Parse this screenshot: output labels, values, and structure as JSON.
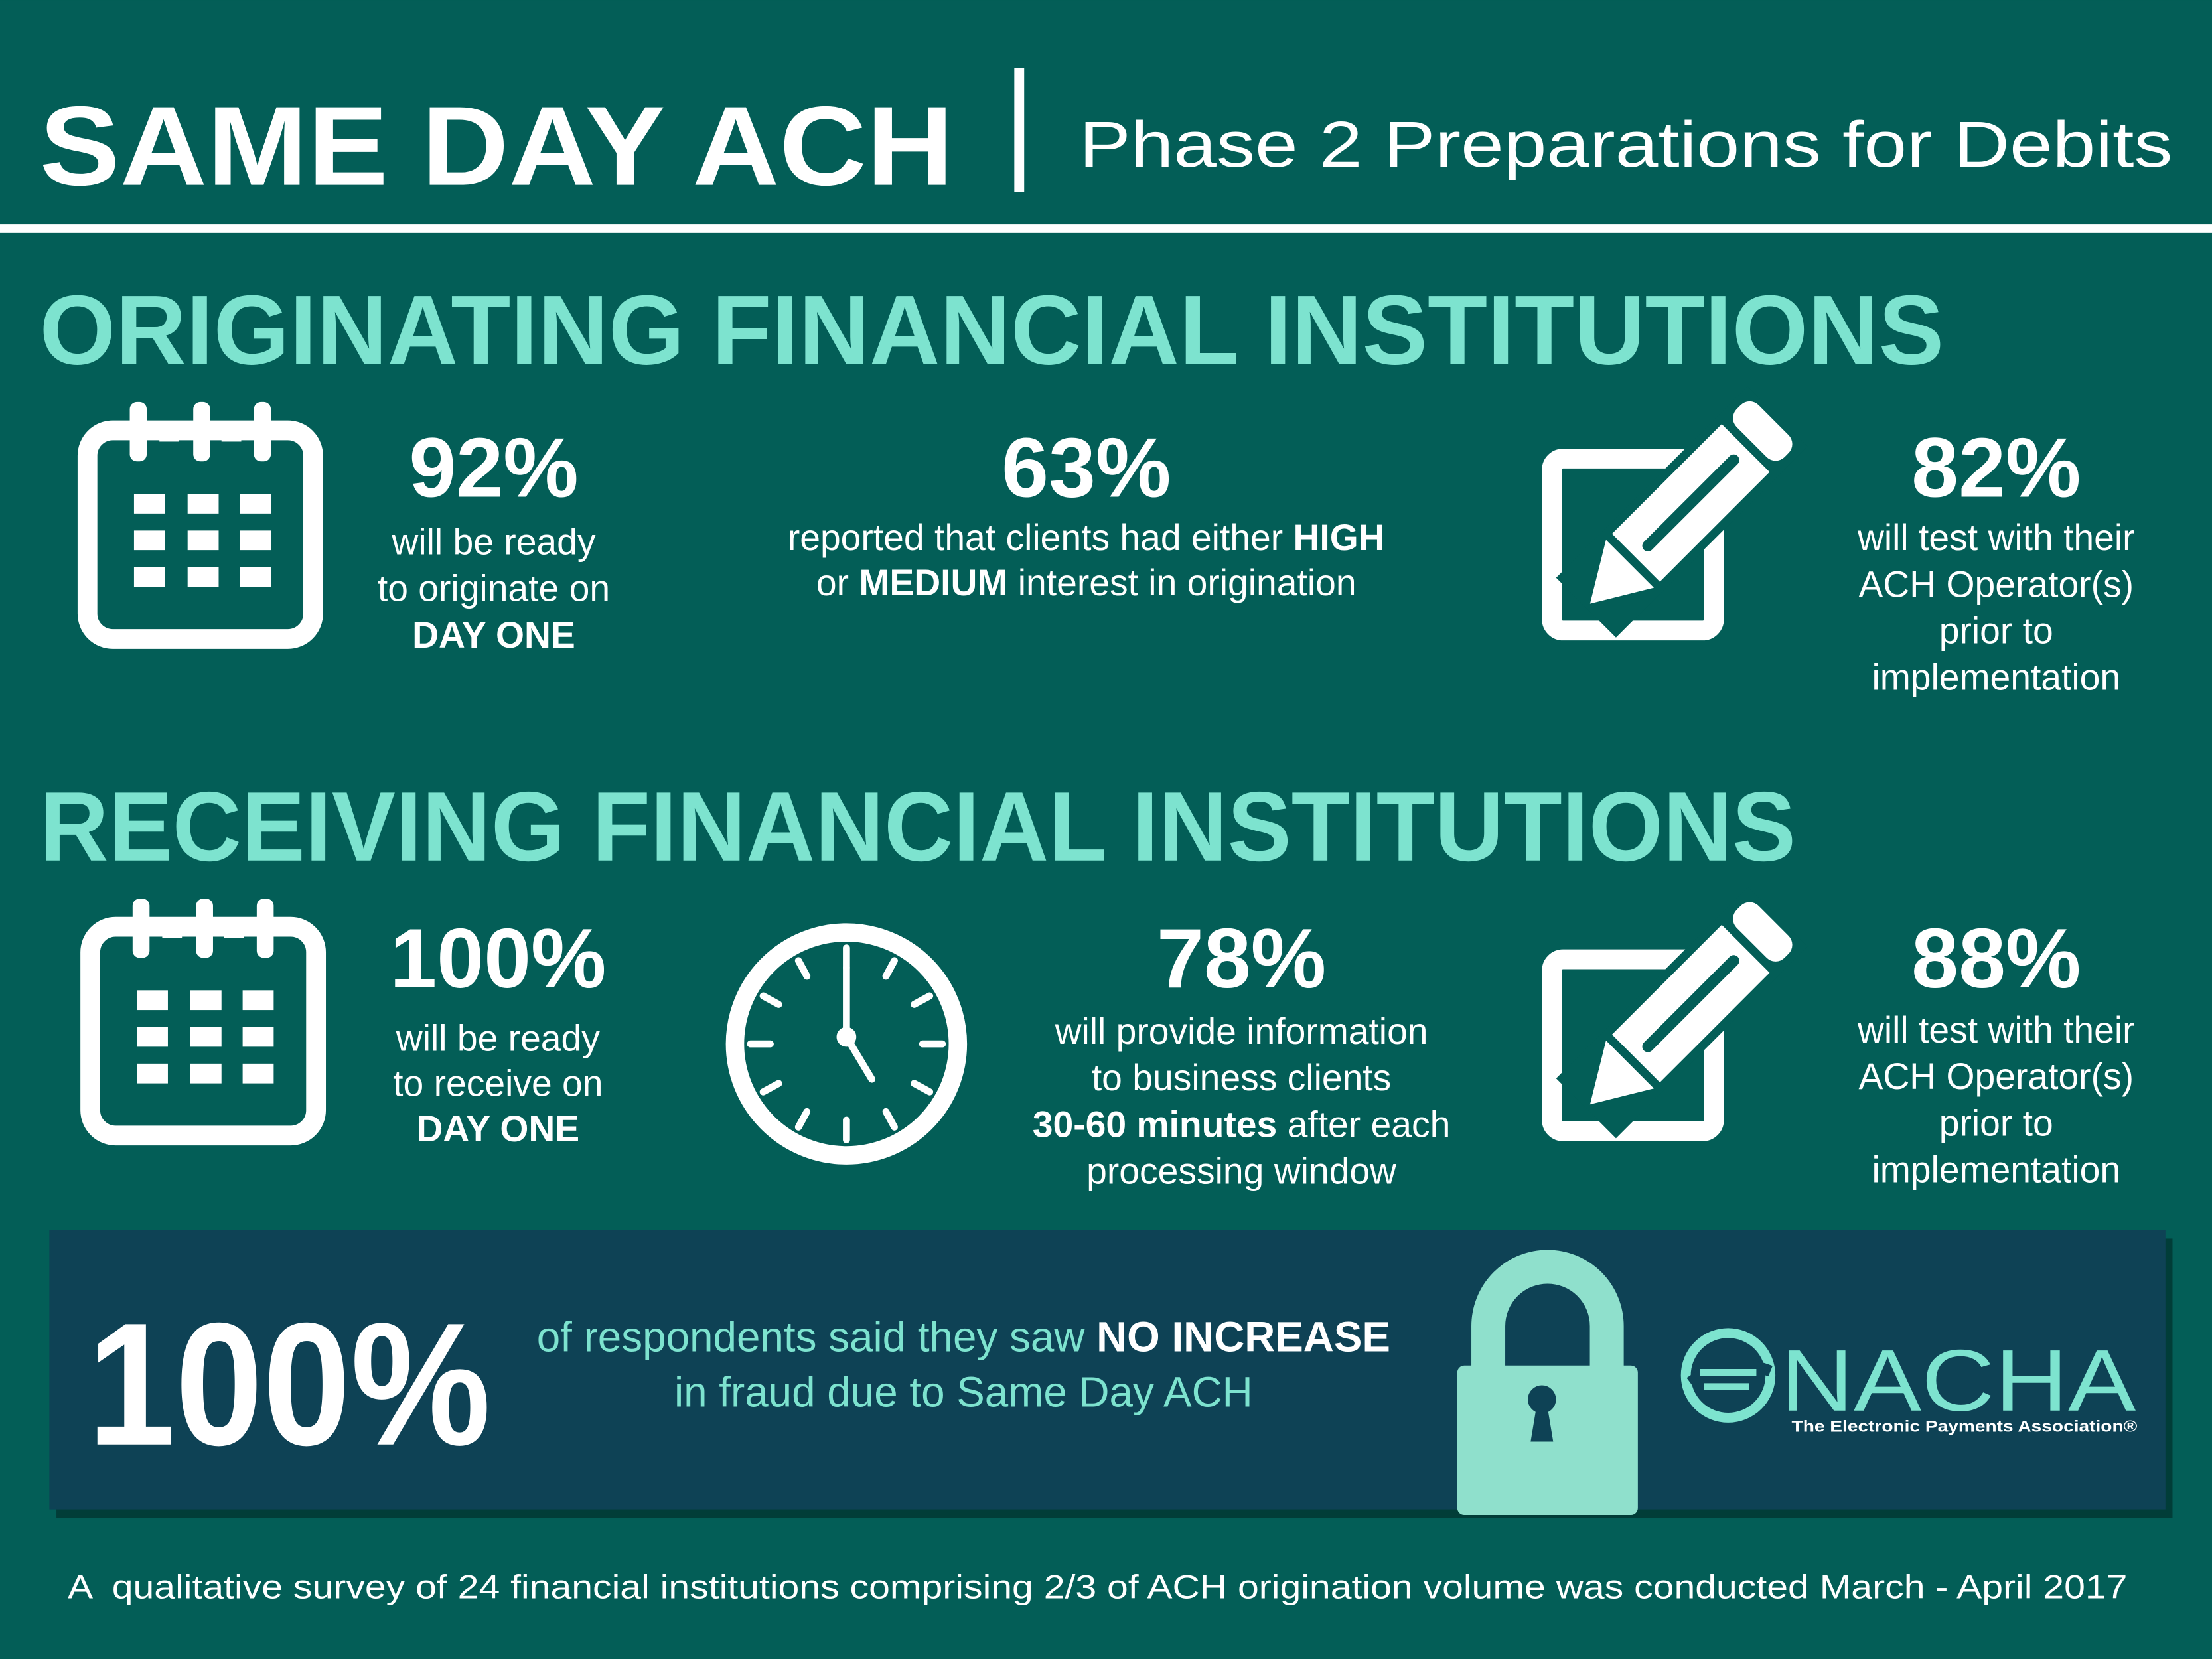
{
  "header": {
    "title": "SAME DAY ACH",
    "subtitle": "Phase 2 Preparations for Debits"
  },
  "sections": [
    {
      "heading": "ORIGINATING FINANCIAL INSTITUTIONS",
      "items": [
        {
          "stat": "92%",
          "lines": [
            {
              "text": "will be ready"
            },
            {
              "text": "to originate on"
            },
            {
              "bold": "DAY ONE"
            }
          ]
        },
        {
          "stat": "63%",
          "lines": [
            {
              "text": "reported that clients had either ",
              "bold": "HIGH"
            },
            {
              "text": "or ",
              "bold": "MEDIUM",
              "after": " interest in origination"
            }
          ]
        },
        {
          "stat": "82%",
          "lines": [
            {
              "text": "will test with their"
            },
            {
              "text": "ACH Operator(s)"
            },
            {
              "text": "prior to"
            },
            {
              "text": "implementation"
            }
          ]
        }
      ]
    },
    {
      "heading": "RECEIVING FINANCIAL INSTITUTIONS",
      "items": [
        {
          "stat": "100%",
          "lines": [
            {
              "text": "will be ready"
            },
            {
              "text": "to receive on"
            },
            {
              "bold": "DAY ONE"
            }
          ]
        },
        {
          "stat": "78%",
          "lines": [
            {
              "text": "will provide information"
            },
            {
              "text": "to business clients"
            },
            {
              "bold": "30-60 minutes",
              "after": " after each"
            },
            {
              "text": "processing window"
            }
          ]
        },
        {
          "stat": "88%",
          "lines": [
            {
              "text": "will test with their"
            },
            {
              "text": "ACH Operator(s)"
            },
            {
              "text": "prior to"
            },
            {
              "text": "implementation"
            }
          ]
        }
      ]
    }
  ],
  "callout": {
    "stat": "100%",
    "lines": [
      {
        "text": "of respondents said they saw ",
        "bold": "NO INCREASE"
      },
      {
        "text": "in fraud due to Same Day ACH"
      }
    ]
  },
  "logo": {
    "name": "NACHA",
    "tagline": "The Electronic Payments Association®"
  },
  "footnote": "A  qualitative survey of 24 financial institutions comprising 2/3 of ACH origination volume was conducted March - April 2017"
}
